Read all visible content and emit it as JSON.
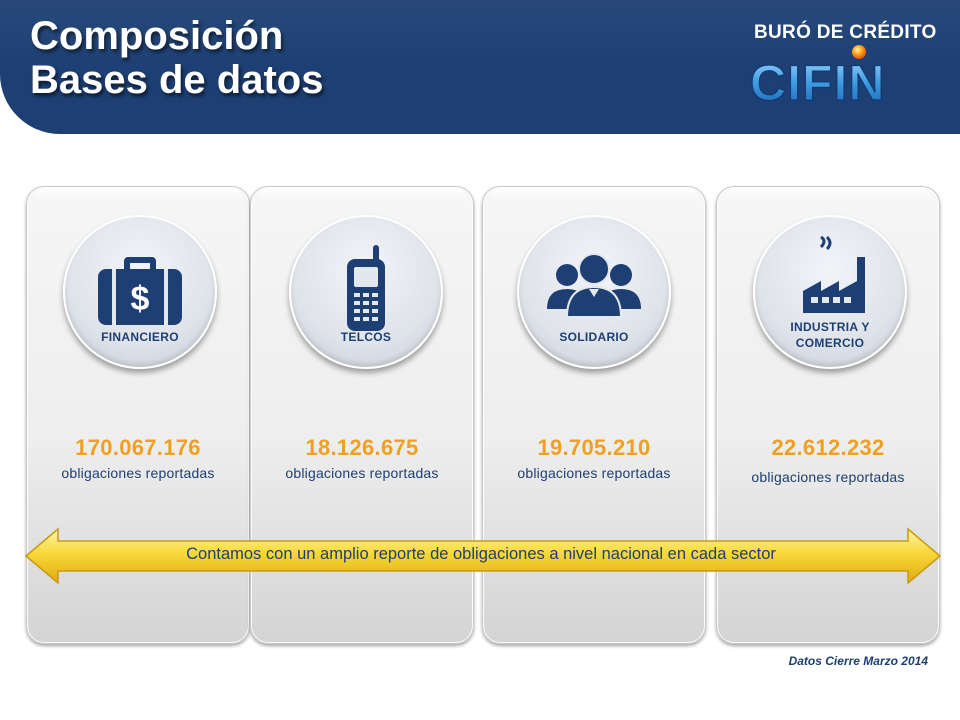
{
  "header": {
    "title_line1": "Composición",
    "title_line2": "Bases de datos",
    "logo_top": "BURÓ DE CRÉDITO",
    "logo_name": "CIFIN"
  },
  "colors": {
    "header_bg": "#1d3f73",
    "value": "#f0a020",
    "text": "#1d3f73",
    "arrow": "#f5c518"
  },
  "sectors": [
    {
      "label": "FINANCIERO",
      "icon": "briefcase-dollar-icon",
      "value": "170.067.176",
      "caption": "obligaciones reportadas"
    },
    {
      "label": "TELCOS",
      "icon": "mobile-phone-icon",
      "value": "18.126.675",
      "caption": "obligaciones reportadas"
    },
    {
      "label": "SOLIDARIO",
      "icon": "people-group-icon",
      "value": "19.705.210",
      "caption": "obligaciones reportadas"
    },
    {
      "label": "INDUSTRIA Y COMERCIO",
      "icon": "factory-icon",
      "value": "22.612.232",
      "caption": "obligaciones reportadas"
    }
  ],
  "banner": {
    "text": "Contamos con un amplio reporte de obligaciones a nivel nacional en cada sector"
  },
  "footnote": "Datos Cierre Marzo 2014"
}
